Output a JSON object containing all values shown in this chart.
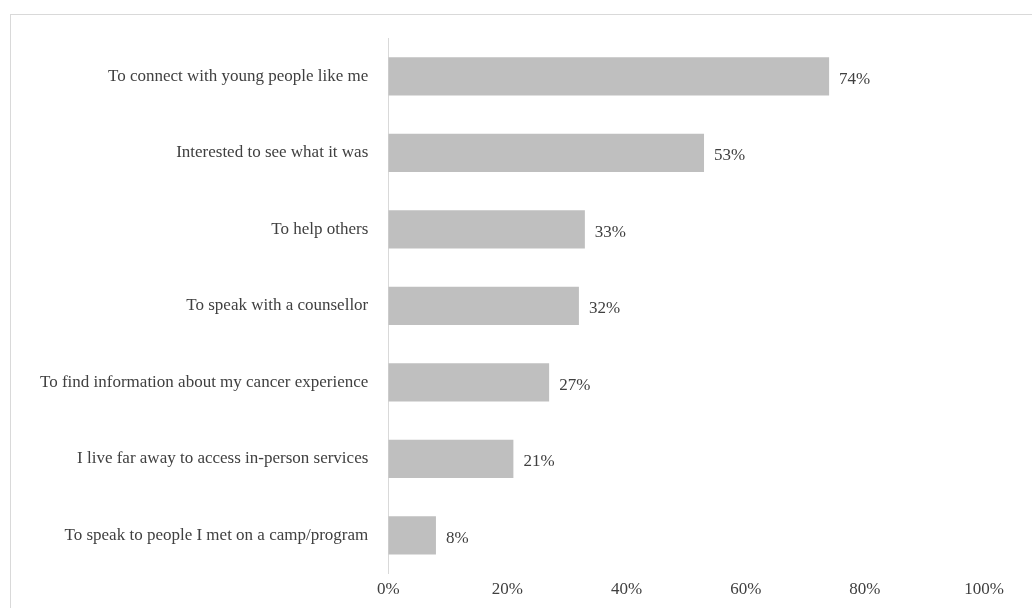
{
  "chart_data": {
    "type": "bar",
    "orientation": "horizontal",
    "categories": [
      "To connect with young people like me",
      "Interested to see what it was",
      "To help others",
      "To speak with a counsellor",
      "To find information about my cancer experience",
      "I live far away to access in-person services",
      "To speak to people I met on a camp/program"
    ],
    "values": [
      74,
      53,
      33,
      32,
      27,
      21,
      8
    ],
    "color": "#bfbfbf",
    "value_labels": [
      "74%",
      "53%",
      "33%",
      "32%",
      "27%",
      "21%",
      "8%"
    ],
    "xlim": [
      0,
      100
    ],
    "xticks": [
      {
        "value": 0,
        "label": "0%"
      },
      {
        "value": 20,
        "label": "20%"
      },
      {
        "value": 40,
        "label": "40%"
      },
      {
        "value": 60,
        "label": "60%"
      },
      {
        "value": 80,
        "label": "80%"
      },
      {
        "value": 100,
        "label": "100%"
      }
    ],
    "grid": false,
    "legend": false
  }
}
